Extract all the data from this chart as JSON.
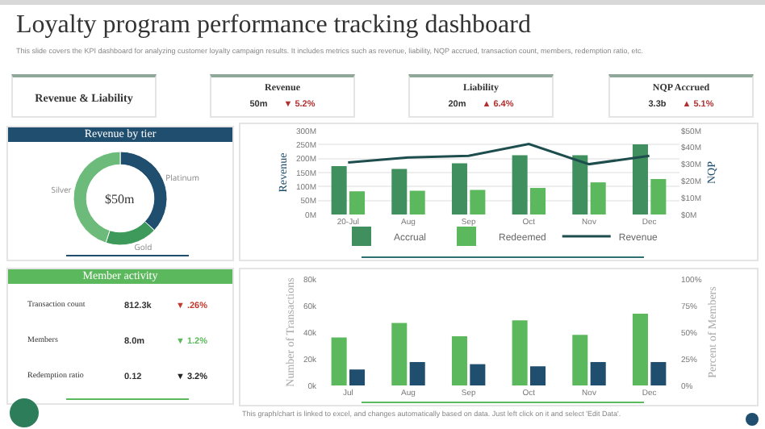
{
  "chart_data": [
    {
      "type": "other",
      "title": "Loyalty program performance tracking dashboard",
      "subtitle": "This slide covers the KPI dashboard for analyzing customer loyalty campaign results. It includes metrics such as revenue, liability, NQP accrued, transaction count, members, redemption ratio, etc.",
      "annotations": [
        "This graph/chart is linked to excel, and changes automatically based on data. Just left click on it and select 'Edit Data'."
      ]
    },
    {
      "type": "other",
      "title": "Revenue & Liability"
    },
    {
      "type": "other",
      "title": "Revenue",
      "annotations": [
        "50m",
        "▼ 5.2%"
      ]
    },
    {
      "type": "other",
      "title": "Liability",
      "annotations": [
        "20m",
        "▲ 6.4%"
      ]
    },
    {
      "type": "other",
      "title": "NQP Accrued",
      "annotations": [
        "3.3b",
        "▲ 5.1%"
      ]
    },
    {
      "type": "donut",
      "title": "Revenue by tier",
      "categories": [
        "Platinum",
        "Gold",
        "Silver"
      ],
      "values": [
        37,
        18,
        45
      ],
      "colors": [
        "#1f4e6e",
        "#3d9a5a",
        "#6dbb7a"
      ],
      "annotations": [
        "$50m"
      ]
    },
    {
      "type": "other",
      "title": "Member activity",
      "annotations": [
        "Transaction count",
        "812.3k",
        "▼ .26%",
        "Members",
        "8.0m",
        "▼ 1.2%",
        "Redemption ratio",
        "0.12",
        "▼ 3.2%"
      ]
    },
    {
      "type": "bar",
      "categories": [
        "20-Jul",
        "Aug",
        "Sep",
        "Oct",
        "Nov",
        "Dec"
      ],
      "ylabel": "Revenue",
      "y2label": "NQP",
      "ylim": [
        0,
        300
      ],
      "yticks": [
        {
          "value": 0,
          "label": "0M"
        },
        {
          "value": 50,
          "label": "50M"
        },
        {
          "value": 100,
          "label": "100M"
        },
        {
          "value": 150,
          "label": "150M"
        },
        {
          "value": 200,
          "label": "200M"
        },
        {
          "value": 250,
          "label": "250M"
        },
        {
          "value": 300,
          "label": "300M"
        }
      ],
      "y2lim": [
        0,
        50
      ],
      "y2ticks": [
        {
          "value": 0,
          "label": "$0M"
        },
        {
          "value": 10,
          "label": "$10M"
        },
        {
          "value": 20,
          "label": "$20M"
        },
        {
          "value": 30,
          "label": "$30M"
        },
        {
          "value": 40,
          "label": "$40M"
        },
        {
          "value": 50,
          "label": "$50M"
        }
      ],
      "grid": "y",
      "legend": "bottom",
      "series": [
        {
          "name": "Accrual",
          "color": "#3f8f5f",
          "values": [
            173,
            163,
            183,
            212,
            212,
            251
          ]
        },
        {
          "name": "Redeemed",
          "color": "#5cb85c",
          "values": [
            83,
            85,
            88,
            95,
            115,
            127
          ]
        },
        {
          "name": "Revenue",
          "type": "line",
          "axis": "y2",
          "color": "#1e4d4d",
          "values": [
            31,
            34,
            35,
            42,
            30,
            35
          ]
        }
      ]
    },
    {
      "type": "bar",
      "categories": [
        "Jul",
        "Aug",
        "Sep",
        "Oct",
        "Nov",
        "Dec"
      ],
      "ylabel": "Number of Transactions",
      "y2label": "Percent of Members",
      "ylim": [
        0,
        80
      ],
      "yticks": [
        {
          "value": 0,
          "label": "0k"
        },
        {
          "value": 20,
          "label": "20k"
        },
        {
          "value": 40,
          "label": "40k"
        },
        {
          "value": 60,
          "label": "60k"
        },
        {
          "value": 80,
          "label": "80k"
        }
      ],
      "y2lim": [
        0,
        100
      ],
      "y2ticks": [
        {
          "value": 0,
          "label": "0%"
        },
        {
          "value": 25,
          "label": "25%"
        },
        {
          "value": 50,
          "label": "50%"
        },
        {
          "value": 75,
          "label": "75%"
        },
        {
          "value": 100,
          "label": "100%"
        }
      ],
      "series": [
        {
          "color": "#5cb85c",
          "values": [
            36,
            47,
            37,
            49,
            38,
            54
          ]
        },
        {
          "color": "#1f4e6e",
          "axis": "y2",
          "values": [
            15,
            22,
            20,
            18,
            22,
            22
          ]
        }
      ]
    }
  ]
}
